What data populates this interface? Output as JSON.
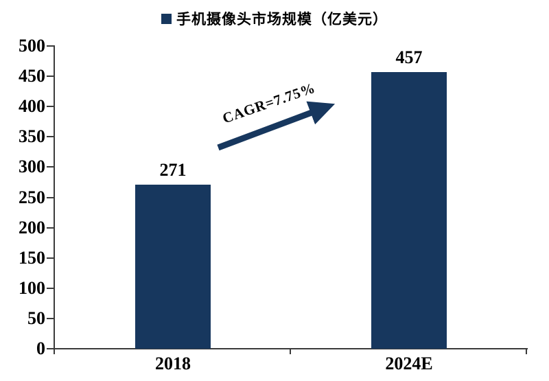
{
  "chart_data": {
    "type": "bar",
    "title": "手机摄像头市场规模（亿美元）",
    "categories": [
      "2018",
      "2024E"
    ],
    "values": [
      271,
      457
    ],
    "ylim": [
      0,
      500
    ],
    "ytick_step": 50,
    "yticks": [
      0,
      50,
      100,
      150,
      200,
      250,
      300,
      350,
      400,
      450,
      500
    ],
    "annotation": "CAGR=7.75%",
    "bar_color": "#17375E",
    "arrow_color": "#17375E",
    "axis_color": "#3a3a3a",
    "legend_position": "top",
    "grid": "off",
    "background": "#ffffff"
  }
}
